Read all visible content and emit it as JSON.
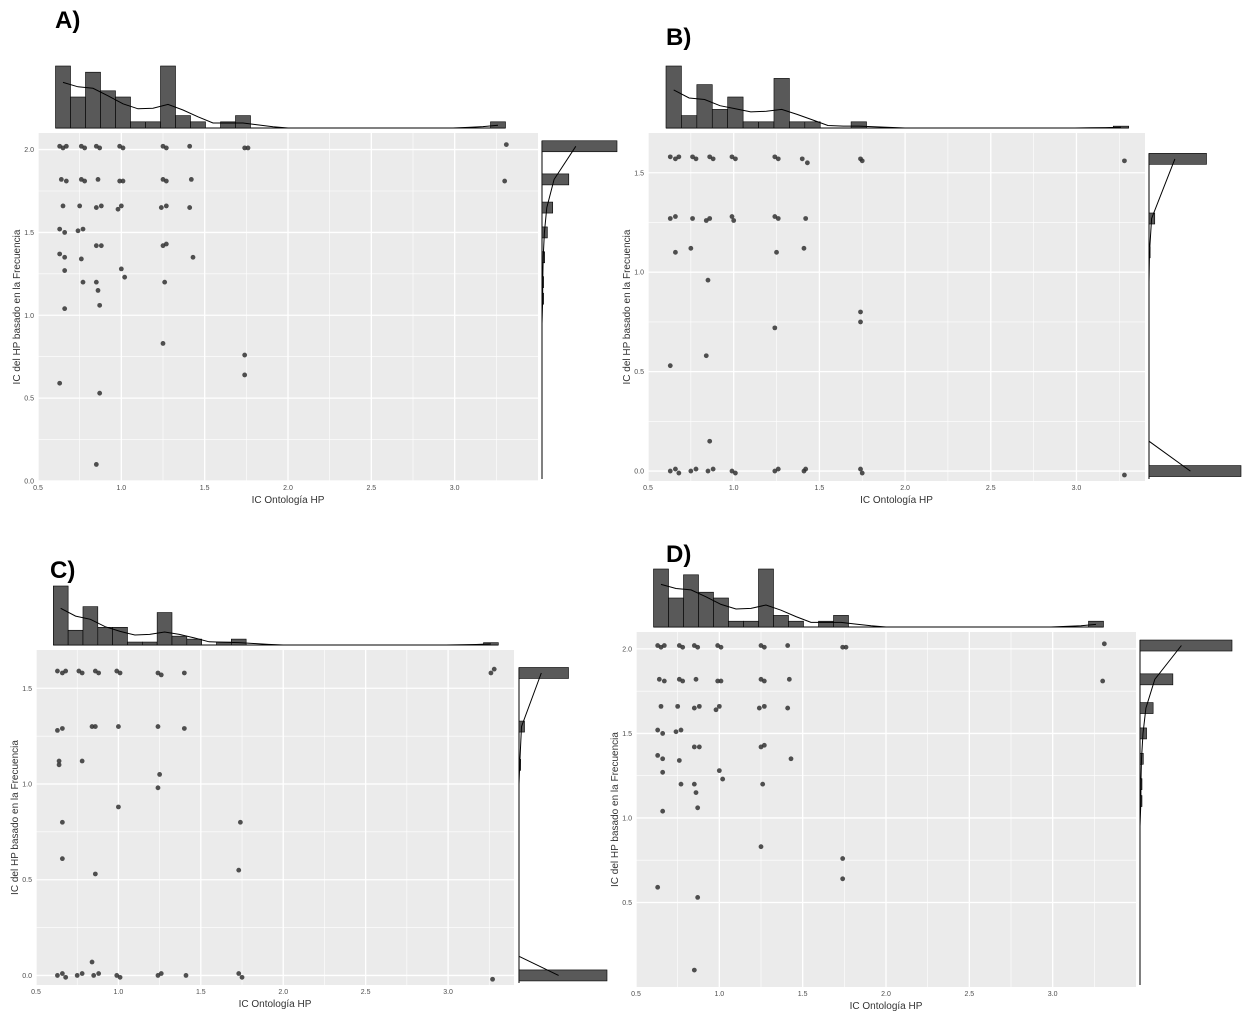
{
  "colors": {
    "panel_bg": "#ebebeb",
    "grid": "#ffffff",
    "bar": "#595959",
    "point": "#333333",
    "density": "#000000"
  },
  "chart_data": [
    {
      "label": "A)",
      "type": "scatter",
      "xlabel": "IC Ontología HP",
      "ylabel": "IC del HP basado en la Frecuencia",
      "xlim": [
        0.5,
        3.5
      ],
      "ylim": [
        0.0,
        2.1
      ],
      "xticks": [
        0.5,
        1.0,
        1.5,
        2.0,
        2.5,
        3.0
      ],
      "xtick_labels": [
        "0.5",
        "1.0",
        "1.5",
        "2.0",
        "2.5",
        "3.0"
      ],
      "yticks": [
        0.0,
        0.5,
        1.0,
        1.5,
        2.0
      ],
      "ytick_labels": [
        "0.0",
        "0.5",
        "1.0",
        "1.5",
        "2.0"
      ],
      "points": [
        [
          0.63,
          2.02
        ],
        [
          0.65,
          2.01
        ],
        [
          0.67,
          2.02
        ],
        [
          0.76,
          2.02
        ],
        [
          0.78,
          2.01
        ],
        [
          0.85,
          2.02
        ],
        [
          0.87,
          2.01
        ],
        [
          0.99,
          2.02
        ],
        [
          1.01,
          2.01
        ],
        [
          1.25,
          2.02
        ],
        [
          1.27,
          2.01
        ],
        [
          1.41,
          2.02
        ],
        [
          1.74,
          2.01
        ],
        [
          1.76,
          2.01
        ],
        [
          3.31,
          2.03
        ],
        [
          0.64,
          1.82
        ],
        [
          0.67,
          1.81
        ],
        [
          0.76,
          1.82
        ],
        [
          0.78,
          1.81
        ],
        [
          0.86,
          1.82
        ],
        [
          0.99,
          1.81
        ],
        [
          1.01,
          1.81
        ],
        [
          1.25,
          1.82
        ],
        [
          1.27,
          1.81
        ],
        [
          1.42,
          1.82
        ],
        [
          3.3,
          1.81
        ],
        [
          0.65,
          1.66
        ],
        [
          0.75,
          1.66
        ],
        [
          0.85,
          1.65
        ],
        [
          0.88,
          1.66
        ],
        [
          0.98,
          1.64
        ],
        [
          1.0,
          1.66
        ],
        [
          1.24,
          1.65
        ],
        [
          1.27,
          1.66
        ],
        [
          1.41,
          1.65
        ],
        [
          0.63,
          1.52
        ],
        [
          0.66,
          1.5
        ],
        [
          0.74,
          1.51
        ],
        [
          0.77,
          1.52
        ],
        [
          0.63,
          1.37
        ],
        [
          0.66,
          1.35
        ],
        [
          0.76,
          1.34
        ],
        [
          0.85,
          1.42
        ],
        [
          0.88,
          1.42
        ],
        [
          1.25,
          1.42
        ],
        [
          1.27,
          1.43
        ],
        [
          1.43,
          1.35
        ],
        [
          0.66,
          1.27
        ],
        [
          0.77,
          1.2
        ],
        [
          0.85,
          1.2
        ],
        [
          0.86,
          1.15
        ],
        [
          1.0,
          1.28
        ],
        [
          1.02,
          1.23
        ],
        [
          1.26,
          1.2
        ],
        [
          0.66,
          1.04
        ],
        [
          0.87,
          1.06
        ],
        [
          1.25,
          0.83
        ],
        [
          1.74,
          0.76
        ],
        [
          1.74,
          0.64
        ],
        [
          0.63,
          0.59
        ],
        [
          0.87,
          0.53
        ],
        [
          0.85,
          0.1
        ]
      ],
      "top_hist": {
        "bins": [
          0.65,
          0.74,
          0.83,
          0.92,
          1.01,
          1.1,
          1.19,
          1.28,
          1.37,
          1.46,
          1.55,
          1.64,
          1.73,
          1.82,
          1.91,
          2.0,
          2.09,
          2.18,
          2.27,
          2.36,
          2.45,
          2.54,
          2.63,
          2.72,
          2.81,
          2.9,
          2.99,
          3.08,
          3.17,
          3.26
        ],
        "counts": [
          10,
          5,
          9,
          6,
          5,
          1,
          1,
          10,
          2,
          1,
          0,
          1,
          2,
          0,
          0,
          0,
          0,
          0,
          0,
          0,
          0,
          0,
          0,
          0,
          0,
          0,
          0,
          0,
          0,
          1
        ]
      },
      "right_hist": {
        "bins": [
          0.1,
          0.25,
          0.6,
          0.75,
          0.95,
          1.1,
          1.2,
          1.35,
          1.5,
          1.65,
          1.82,
          2.02
        ],
        "counts": [
          0,
          0,
          0,
          0,
          0,
          0.3,
          0.3,
          0.5,
          1,
          2,
          5,
          14
        ]
      }
    },
    {
      "label": "B)",
      "type": "scatter",
      "xlabel": "IC Ontología HP",
      "ylabel": "IC del HP basado en la Frecuencia",
      "xlim": [
        0.5,
        3.4
      ],
      "ylim": [
        -0.05,
        1.7
      ],
      "xticks": [
        0.5,
        1.0,
        1.5,
        2.0,
        2.5,
        3.0
      ],
      "xtick_labels": [
        "0.5",
        "1.0",
        "1.5",
        "2.0",
        "2.5",
        "3.0"
      ],
      "yticks": [
        0.0,
        0.5,
        1.0,
        1.5
      ],
      "ytick_labels": [
        "0.0",
        "0.5",
        "1.0",
        "1.5"
      ],
      "points": [
        [
          0.63,
          1.58
        ],
        [
          0.66,
          1.57
        ],
        [
          0.68,
          1.58
        ],
        [
          0.76,
          1.58
        ],
        [
          0.78,
          1.57
        ],
        [
          0.86,
          1.58
        ],
        [
          0.88,
          1.57
        ],
        [
          0.99,
          1.58
        ],
        [
          1.01,
          1.57
        ],
        [
          1.24,
          1.58
        ],
        [
          1.26,
          1.57
        ],
        [
          1.4,
          1.57
        ],
        [
          1.43,
          1.55
        ],
        [
          1.74,
          1.57
        ],
        [
          1.75,
          1.56
        ],
        [
          3.28,
          1.56
        ],
        [
          0.63,
          1.27
        ],
        [
          0.66,
          1.28
        ],
        [
          0.76,
          1.27
        ],
        [
          0.84,
          1.26
        ],
        [
          0.86,
          1.27
        ],
        [
          0.99,
          1.28
        ],
        [
          1.0,
          1.26
        ],
        [
          1.24,
          1.28
        ],
        [
          1.26,
          1.27
        ],
        [
          1.42,
          1.27
        ],
        [
          0.66,
          1.1
        ],
        [
          0.75,
          1.12
        ],
        [
          1.25,
          1.1
        ],
        [
          1.41,
          1.12
        ],
        [
          0.85,
          0.96
        ],
        [
          1.74,
          0.8
        ],
        [
          1.74,
          0.75
        ],
        [
          1.24,
          0.72
        ],
        [
          0.63,
          0.53
        ],
        [
          0.84,
          0.58
        ],
        [
          0.86,
          0.15
        ],
        [
          0.63,
          0.0
        ],
        [
          0.66,
          0.01
        ],
        [
          0.68,
          -0.01
        ],
        [
          0.75,
          0.0
        ],
        [
          0.78,
          0.01
        ],
        [
          0.85,
          0.0
        ],
        [
          0.88,
          0.01
        ],
        [
          0.99,
          0.0
        ],
        [
          1.01,
          -0.01
        ],
        [
          1.24,
          0.0
        ],
        [
          1.26,
          0.01
        ],
        [
          1.41,
          0.0
        ],
        [
          1.42,
          0.01
        ],
        [
          1.74,
          0.01
        ],
        [
          1.75,
          -0.01
        ],
        [
          3.28,
          -0.02
        ]
      ],
      "top_hist": {
        "bins": [
          0.65,
          0.74,
          0.83,
          0.92,
          1.01,
          1.1,
          1.19,
          1.28,
          1.37,
          1.46,
          1.55,
          1.64,
          1.73,
          1.82,
          1.91,
          2.0,
          2.09,
          2.18,
          2.27,
          2.36,
          2.45,
          2.54,
          2.63,
          2.72,
          2.81,
          2.9,
          2.99,
          3.08,
          3.17,
          3.26
        ],
        "counts": [
          10,
          2,
          7,
          3,
          5,
          1,
          1,
          8,
          1,
          1,
          0,
          0,
          1,
          0,
          0,
          0,
          0,
          0,
          0,
          0,
          0,
          0,
          0,
          0,
          0,
          0,
          0,
          0,
          0,
          0.3
        ]
      },
      "right_hist": {
        "bins": [
          0.0,
          0.15,
          0.55,
          0.75,
          0.95,
          1.1,
          1.27,
          1.57
        ],
        "counts": [
          16,
          0,
          0,
          0,
          0,
          0.2,
          1,
          10
        ]
      }
    },
    {
      "label": "C)",
      "type": "scatter",
      "xlabel": "IC Ontología HP",
      "ylabel": "IC del HP basado en la Frecuencia",
      "xlim": [
        0.5,
        3.4
      ],
      "ylim": [
        -0.05,
        1.7
      ],
      "xticks": [
        0.5,
        1.0,
        1.5,
        2.0,
        2.5,
        3.0
      ],
      "xtick_labels": [
        "0.5",
        "1.0",
        "1.5",
        "2.0",
        "2.5",
        "3.0"
      ],
      "yticks": [
        0.0,
        0.5,
        1.0,
        1.5
      ],
      "ytick_labels": [
        "0.0",
        "0.5",
        "1.0",
        "1.5"
      ],
      "points": [
        [
          0.63,
          1.59
        ],
        [
          0.66,
          1.58
        ],
        [
          0.68,
          1.59
        ],
        [
          0.76,
          1.59
        ],
        [
          0.78,
          1.58
        ],
        [
          0.86,
          1.59
        ],
        [
          0.88,
          1.58
        ],
        [
          0.99,
          1.59
        ],
        [
          1.01,
          1.58
        ],
        [
          1.24,
          1.58
        ],
        [
          1.26,
          1.57
        ],
        [
          1.4,
          1.58
        ],
        [
          3.26,
          1.58
        ],
        [
          3.28,
          1.6
        ],
        [
          0.63,
          1.28
        ],
        [
          0.66,
          1.29
        ],
        [
          0.84,
          1.3
        ],
        [
          0.86,
          1.3
        ],
        [
          1.0,
          1.3
        ],
        [
          1.24,
          1.3
        ],
        [
          1.4,
          1.29
        ],
        [
          0.64,
          1.12
        ],
        [
          0.78,
          1.12
        ],
        [
          0.64,
          1.1
        ],
        [
          1.25,
          1.05
        ],
        [
          1.24,
          0.98
        ],
        [
          1.0,
          0.88
        ],
        [
          0.66,
          0.8
        ],
        [
          1.74,
          0.8
        ],
        [
          0.66,
          0.61
        ],
        [
          1.73,
          0.55
        ],
        [
          0.86,
          0.53
        ],
        [
          0.84,
          0.07
        ],
        [
          0.63,
          0.0
        ],
        [
          0.66,
          0.01
        ],
        [
          0.68,
          -0.01
        ],
        [
          0.75,
          0.0
        ],
        [
          0.78,
          0.01
        ],
        [
          0.85,
          0.0
        ],
        [
          0.88,
          0.01
        ],
        [
          0.99,
          0.0
        ],
        [
          1.01,
          -0.01
        ],
        [
          1.24,
          0.0
        ],
        [
          1.26,
          0.01
        ],
        [
          1.41,
          0.0
        ],
        [
          1.73,
          0.01
        ],
        [
          1.75,
          -0.01
        ],
        [
          3.27,
          -0.02
        ]
      ],
      "top_hist": {
        "bins": [
          0.65,
          0.74,
          0.83,
          0.92,
          1.01,
          1.1,
          1.19,
          1.28,
          1.37,
          1.46,
          1.55,
          1.64,
          1.73,
          1.82,
          1.91,
          2.0,
          2.09,
          2.18,
          2.27,
          2.36,
          2.45,
          2.54,
          2.63,
          2.72,
          2.81,
          2.9,
          2.99,
          3.08,
          3.17,
          3.26
        ],
        "counts": [
          10,
          2.5,
          6.5,
          3,
          3,
          0.5,
          0.5,
          5.5,
          1.5,
          1,
          0,
          0.5,
          1,
          0,
          0,
          0,
          0,
          0,
          0,
          0,
          0,
          0,
          0,
          0,
          0,
          0,
          0,
          0,
          0,
          0.4
        ]
      },
      "right_hist": {
        "bins": [
          0.0,
          0.1,
          0.55,
          0.8,
          1.0,
          1.1,
          1.3,
          1.58
        ],
        "counts": [
          16,
          0,
          0,
          0,
          0,
          0.3,
          1,
          9
        ]
      }
    },
    {
      "label": "D)",
      "type": "scatter",
      "xlabel": "IC Ontología HP",
      "ylabel": "IC del HP basado en la Frecuencia",
      "xlim": [
        0.5,
        3.5
      ],
      "ylim": [
        0.0,
        2.1
      ],
      "xticks": [
        0.5,
        1.0,
        1.5,
        2.0,
        2.5,
        3.0
      ],
      "xtick_labels": [
        "0.5",
        "1.0",
        "1.5",
        "2.0",
        "2.5",
        "3.0"
      ],
      "yticks": [
        0.5,
        1.0,
        1.5,
        2.0
      ],
      "ytick_labels": [
        "0.5",
        "1.0",
        "1.5",
        "2.0"
      ],
      "points": [
        [
          0.63,
          2.02
        ],
        [
          0.65,
          2.01
        ],
        [
          0.67,
          2.02
        ],
        [
          0.76,
          2.02
        ],
        [
          0.78,
          2.01
        ],
        [
          0.85,
          2.02
        ],
        [
          0.87,
          2.01
        ],
        [
          0.99,
          2.02
        ],
        [
          1.01,
          2.01
        ],
        [
          1.25,
          2.02
        ],
        [
          1.27,
          2.01
        ],
        [
          1.41,
          2.02
        ],
        [
          1.74,
          2.01
        ],
        [
          1.76,
          2.01
        ],
        [
          3.31,
          2.03
        ],
        [
          0.64,
          1.82
        ],
        [
          0.67,
          1.81
        ],
        [
          0.76,
          1.82
        ],
        [
          0.78,
          1.81
        ],
        [
          0.86,
          1.82
        ],
        [
          0.99,
          1.81
        ],
        [
          1.01,
          1.81
        ],
        [
          1.25,
          1.82
        ],
        [
          1.27,
          1.81
        ],
        [
          1.42,
          1.82
        ],
        [
          3.3,
          1.81
        ],
        [
          0.65,
          1.66
        ],
        [
          0.75,
          1.66
        ],
        [
          0.85,
          1.65
        ],
        [
          0.88,
          1.66
        ],
        [
          0.98,
          1.64
        ],
        [
          1.0,
          1.66
        ],
        [
          1.24,
          1.65
        ],
        [
          1.27,
          1.66
        ],
        [
          1.41,
          1.65
        ],
        [
          0.63,
          1.52
        ],
        [
          0.66,
          1.5
        ],
        [
          0.74,
          1.51
        ],
        [
          0.77,
          1.52
        ],
        [
          0.63,
          1.37
        ],
        [
          0.66,
          1.35
        ],
        [
          0.76,
          1.34
        ],
        [
          0.85,
          1.42
        ],
        [
          0.88,
          1.42
        ],
        [
          1.25,
          1.42
        ],
        [
          1.27,
          1.43
        ],
        [
          1.43,
          1.35
        ],
        [
          0.66,
          1.27
        ],
        [
          0.77,
          1.2
        ],
        [
          0.85,
          1.2
        ],
        [
          0.86,
          1.15
        ],
        [
          1.0,
          1.28
        ],
        [
          1.02,
          1.23
        ],
        [
          1.26,
          1.2
        ],
        [
          0.66,
          1.04
        ],
        [
          0.87,
          1.06
        ],
        [
          1.25,
          0.83
        ],
        [
          1.74,
          0.76
        ],
        [
          1.74,
          0.64
        ],
        [
          0.63,
          0.59
        ],
        [
          0.87,
          0.53
        ],
        [
          0.85,
          0.1
        ]
      ],
      "top_hist": {
        "bins": [
          0.65,
          0.74,
          0.83,
          0.92,
          1.01,
          1.1,
          1.19,
          1.28,
          1.37,
          1.46,
          1.55,
          1.64,
          1.73,
          1.82,
          1.91,
          2.0,
          2.09,
          2.18,
          2.27,
          2.36,
          2.45,
          2.54,
          2.63,
          2.72,
          2.81,
          2.9,
          2.99,
          3.08,
          3.17,
          3.26
        ],
        "counts": [
          10,
          5,
          9,
          6,
          5,
          1,
          1,
          10,
          2,
          1,
          0,
          1,
          2,
          0,
          0,
          0,
          0,
          0,
          0,
          0,
          0,
          0,
          0,
          0,
          0,
          0,
          0,
          0,
          0,
          1
        ]
      },
      "right_hist": {
        "bins": [
          0.1,
          0.25,
          0.6,
          0.75,
          0.95,
          1.1,
          1.2,
          1.35,
          1.5,
          1.65,
          1.82,
          2.02
        ],
        "counts": [
          0,
          0,
          0,
          0,
          0,
          0.3,
          0.3,
          0.5,
          1,
          2,
          5,
          14
        ]
      }
    }
  ]
}
